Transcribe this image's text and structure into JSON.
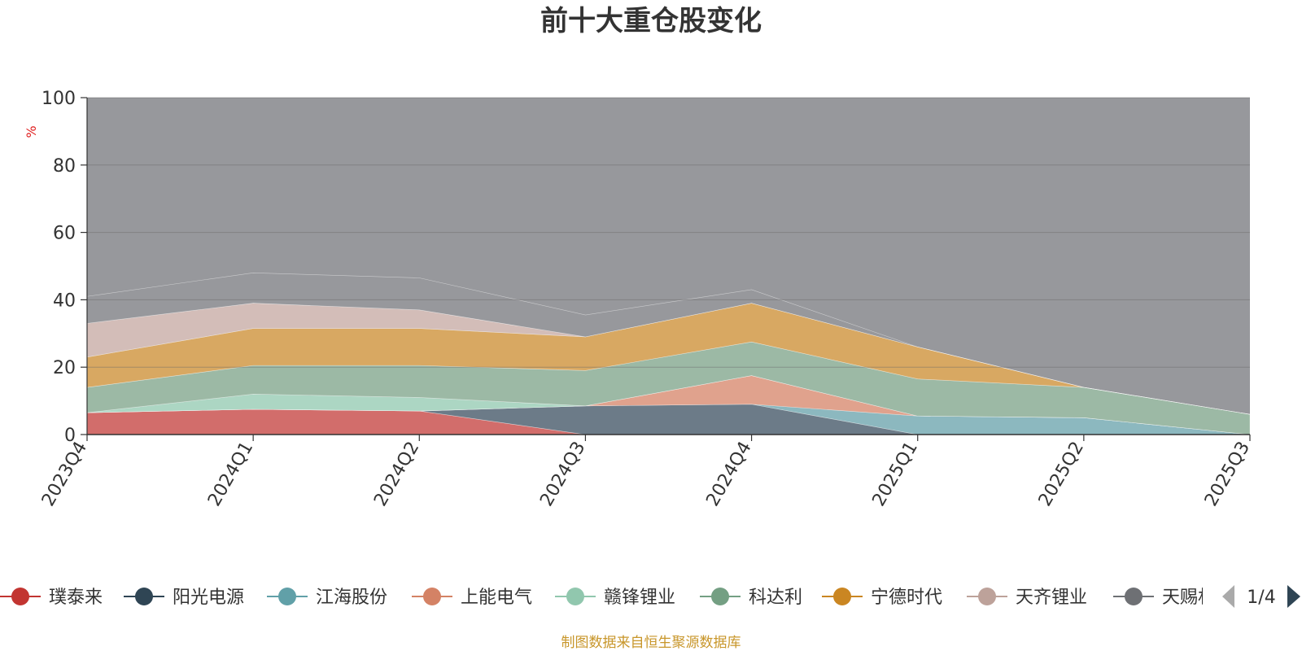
{
  "chart_data": {
    "type": "area",
    "title": "前十大重仓股变化",
    "unit": "%",
    "categories": [
      "2023Q4",
      "2024Q1",
      "2024Q2",
      "2024Q3",
      "2024Q4",
      "2025Q1",
      "2025Q2",
      "2025Q3"
    ],
    "ylim": [
      0,
      100
    ],
    "yticks": [
      0,
      20,
      40,
      60,
      80,
      100
    ],
    "grid": true,
    "stacked": true,
    "series": [
      {
        "name": "璞泰来",
        "color": "#d26d6b",
        "values": [
          6.5,
          7.5,
          7,
          0,
          0,
          0,
          0,
          0
        ]
      },
      {
        "name": "阳光电源",
        "color": "#6c7b88",
        "values": [
          0,
          0,
          0,
          8.5,
          9,
          0,
          0,
          0
        ]
      },
      {
        "name": "江海股份",
        "color": "#8cb8bf",
        "values": [
          0,
          0,
          0,
          0,
          0,
          5.5,
          5,
          0
        ]
      },
      {
        "name": "上能电气",
        "color": "#e0a28d",
        "values": [
          0,
          0,
          0,
          0,
          8.5,
          0,
          0,
          0
        ]
      },
      {
        "name": "赣锋锂业",
        "color": "#acd6c3",
        "values": [
          0,
          4.5,
          4,
          0,
          0,
          0,
          0,
          0
        ]
      },
      {
        "name": "科达利",
        "color": "#9cb9a5",
        "values": [
          7.5,
          8.5,
          9.5,
          10.5,
          10,
          11,
          9,
          6
        ]
      },
      {
        "name": "宁德时代",
        "color": "#d8a862",
        "values": [
          9,
          11,
          11,
          10,
          11.5,
          9.5,
          0,
          0
        ]
      },
      {
        "name": "天齐锂业",
        "color": "#d3bdb8",
        "values": [
          10,
          7.5,
          5.5,
          0,
          0,
          0,
          0,
          0
        ]
      },
      {
        "name": "天赐材料",
        "color": "#97989c",
        "values": [
          8,
          9,
          9.5,
          6.5,
          4,
          0,
          0,
          0
        ]
      }
    ]
  },
  "legend": {
    "items": [
      {
        "label": "璞泰来",
        "color": "#c23531"
      },
      {
        "label": "阳光电源",
        "color": "#2f4554"
      },
      {
        "label": "江海股份",
        "color": "#61a0a8"
      },
      {
        "label": "上能电气",
        "color": "#d48265"
      },
      {
        "label": "赣锋锂业",
        "color": "#91c7ae"
      },
      {
        "label": "科达利",
        "color": "#749f83"
      },
      {
        "label": "宁德时代",
        "color": "#ca8622"
      },
      {
        "label": "天齐锂业",
        "color": "#bda29a"
      },
      {
        "label": "天赐材料",
        "color": "#6e7074"
      }
    ],
    "page": "1/4"
  },
  "footer": "制图数据来自恒生聚源数据库"
}
